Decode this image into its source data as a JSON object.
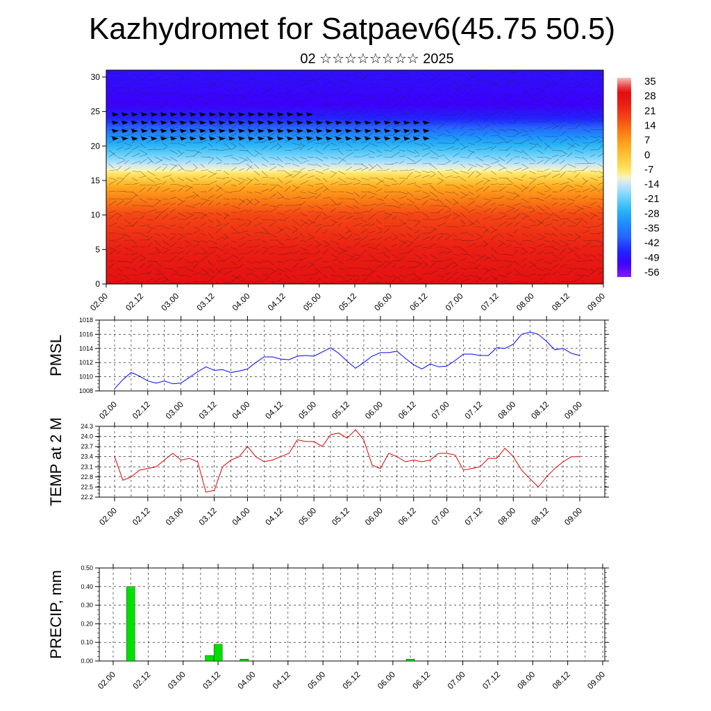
{
  "title": "Kazhydromet for Satpaev6(45.75 50.5)",
  "subtitle": "02 ☆☆☆☆☆☆☆☆ 2025",
  "colors": {
    "pmsl_line": "#0000ff",
    "temp_line": "#e00000",
    "precip_bar": "#00e000"
  },
  "chart_data": [
    {
      "type": "heatmap",
      "description_kind": "height-time cross section with wind barbs",
      "x_ticks": [
        "02.00",
        "02.12",
        "03.00",
        "03.12",
        "04.00",
        "04.12",
        "05.00",
        "05.12",
        "06.00",
        "06.12",
        "07.00",
        "07.12",
        "08.00",
        "08.12",
        "09.00"
      ],
      "y_ticks": [
        0,
        5,
        10,
        15,
        20,
        25,
        30
      ],
      "ylim": [
        0,
        31
      ],
      "colorbar_labels": [
        "35",
        "28",
        "21",
        "14",
        "7",
        "0",
        "-7",
        "-14",
        "-21",
        "-28",
        "-35",
        "-42",
        "-49",
        "-56"
      ],
      "colorbar_range": [
        -63,
        42
      ],
      "temperature_profile": [
        {
          "height": 0,
          "value": 33
        },
        {
          "height": 5,
          "value": 28
        },
        {
          "height": 10,
          "value": 21
        },
        {
          "height": 14,
          "value": 7
        },
        {
          "height": 16,
          "value": -7
        },
        {
          "height": 18,
          "value": -18
        },
        {
          "height": 21,
          "value": -32
        },
        {
          "height": 24,
          "value": -50
        },
        {
          "height": 26,
          "value": -56
        },
        {
          "height": 31,
          "value": -53
        }
      ]
    },
    {
      "type": "line",
      "ylabel": "PMSL",
      "ylim": [
        1008,
        1018
      ],
      "y_ticks": [
        "1008",
        "1010",
        "1012",
        "1014",
        "1016",
        "1018"
      ],
      "x_ticks": [
        "02.00",
        "02.12",
        "03.00",
        "03.12",
        "04.00",
        "04.12",
        "05.00",
        "05.12",
        "06.00",
        "06.12",
        "07.00",
        "07.12",
        "08.00",
        "08.12",
        "09.00"
      ],
      "x_unit_hours": 3,
      "values": [
        1008.3,
        1009.6,
        1010.6,
        1010.1,
        1009.4,
        1009.1,
        1009.4,
        1009.0,
        1009.1,
        1009.9,
        1010.7,
        1011.4,
        1010.9,
        1011.0,
        1010.6,
        1010.8,
        1011.1,
        1012.0,
        1012.8,
        1012.8,
        1012.5,
        1012.4,
        1012.9,
        1013.0,
        1012.9,
        1013.5,
        1014.1,
        1013.3,
        1012.2,
        1011.2,
        1012.0,
        1012.9,
        1013.4,
        1013.4,
        1013.6,
        1012.6,
        1011.7,
        1011.1,
        1011.8,
        1011.4,
        1011.5,
        1012.3,
        1013.2,
        1013.2,
        1013.0,
        1013.0,
        1014.1,
        1014.0,
        1014.6,
        1016.0,
        1016.3,
        1016.0,
        1015.0,
        1013.8,
        1014.0,
        1013.3,
        1013.0
      ]
    },
    {
      "type": "line",
      "ylabel": "TEMP at 2 M",
      "ylim": [
        22.2,
        24.3
      ],
      "y_ticks": [
        "22.2",
        "22.5",
        "22.8",
        "23.1",
        "23.4",
        "23.7",
        "24.0",
        "24.3"
      ],
      "x_ticks": [
        "02.00",
        "02.12",
        "03.00",
        "03.12",
        "04.00",
        "04.12",
        "05.00",
        "05.12",
        "06.00",
        "06.12",
        "07.00",
        "07.12",
        "08.00",
        "08.12",
        "09.00"
      ],
      "x_unit_hours": 3,
      "values": [
        23.4,
        22.7,
        22.8,
        23.0,
        23.05,
        23.1,
        23.3,
        23.5,
        23.3,
        23.35,
        23.25,
        22.35,
        22.4,
        23.1,
        23.3,
        23.4,
        23.7,
        23.4,
        23.25,
        23.3,
        23.4,
        23.5,
        23.9,
        23.85,
        23.85,
        23.7,
        24.05,
        24.1,
        23.95,
        24.2,
        23.9,
        23.15,
        23.05,
        23.5,
        23.4,
        23.25,
        23.3,
        23.25,
        23.3,
        23.5,
        23.5,
        23.45,
        23.0,
        23.05,
        23.1,
        23.35,
        23.35,
        23.65,
        23.4,
        23.0,
        22.75,
        22.5,
        22.8,
        23.05,
        23.25,
        23.4,
        23.4
      ]
    },
    {
      "type": "bar",
      "ylabel": "PRECIP, mm",
      "ylim": [
        0,
        0.5
      ],
      "y_ticks": [
        "0.00",
        "0.10",
        "0.20",
        "0.30",
        "0.40",
        "0.50"
      ],
      "x_ticks": [
        "02.00",
        "02.12",
        "03.00",
        "03.12",
        "04.00",
        "04.12",
        "05.00",
        "05.12",
        "06.00",
        "06.12",
        "07.00",
        "07.12",
        "08.00",
        "08.12",
        "09.00"
      ],
      "x_unit_hours": 3,
      "bars": [
        {
          "index": 2,
          "value": 0.4
        },
        {
          "index": 11,
          "value": 0.03
        },
        {
          "index": 12,
          "value": 0.09
        },
        {
          "index": 15,
          "value": 0.01
        },
        {
          "index": 34,
          "value": 0.01
        }
      ]
    }
  ]
}
